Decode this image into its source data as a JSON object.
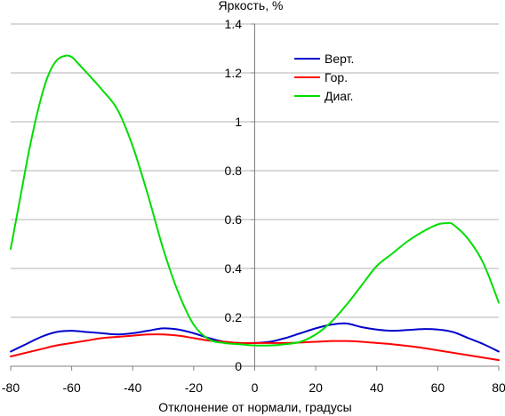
{
  "chart_data": {
    "type": "line",
    "title": "",
    "ylabel": "Яркость, %",
    "xlabel": "Отклонение от нормали, градусы",
    "xlim": [
      -80,
      80
    ],
    "ylim": [
      0,
      1.4
    ],
    "xticks": [
      -80,
      -60,
      -40,
      -20,
      0,
      20,
      40,
      60,
      80
    ],
    "yticks": [
      0,
      0.2,
      0.4,
      0.6,
      0.8,
      1,
      1.2,
      1.4
    ],
    "xtick_labels": [
      "-80",
      "-60",
      "-40",
      "-20",
      "0",
      "20",
      "40",
      "60",
      "80"
    ],
    "ytick_labels": [
      "0",
      "0.2",
      "0.4",
      "0.6",
      "0.8",
      "1",
      "1.2",
      "1.4"
    ],
    "grid": "horizontal",
    "legend_position": "top-right",
    "series": [
      {
        "name": "Верт.",
        "color": "#0000cc",
        "x": [
          -80,
          -75,
          -70,
          -65,
          -60,
          -55,
          -50,
          -45,
          -40,
          -35,
          -30,
          -25,
          -20,
          -15,
          -10,
          -5,
          0,
          5,
          10,
          15,
          20,
          25,
          30,
          35,
          40,
          45,
          50,
          55,
          60,
          65,
          70,
          75,
          80
        ],
        "y": [
          0.06,
          0.09,
          0.12,
          0.14,
          0.145,
          0.14,
          0.135,
          0.13,
          0.135,
          0.145,
          0.155,
          0.15,
          0.135,
          0.115,
          0.1,
          0.095,
          0.095,
          0.1,
          0.115,
          0.135,
          0.155,
          0.17,
          0.175,
          0.16,
          0.15,
          0.145,
          0.148,
          0.152,
          0.15,
          0.14,
          0.115,
          0.09,
          0.06
        ]
      },
      {
        "name": "Гор.",
        "color": "#ff0000",
        "x": [
          -80,
          -75,
          -70,
          -65,
          -60,
          -55,
          -50,
          -45,
          -40,
          -35,
          -30,
          -25,
          -20,
          -15,
          -10,
          -5,
          0,
          5,
          10,
          15,
          20,
          25,
          30,
          35,
          40,
          45,
          50,
          55,
          60,
          65,
          70,
          75,
          80
        ],
        "y": [
          0.04,
          0.055,
          0.07,
          0.085,
          0.095,
          0.105,
          0.115,
          0.12,
          0.125,
          0.13,
          0.13,
          0.125,
          0.115,
          0.105,
          0.1,
          0.095,
          0.095,
          0.095,
          0.095,
          0.097,
          0.1,
          0.103,
          0.103,
          0.1,
          0.095,
          0.09,
          0.083,
          0.075,
          0.065,
          0.055,
          0.045,
          0.035,
          0.025
        ]
      },
      {
        "name": "Диаг.",
        "color": "#00dd00",
        "x": [
          -80,
          -77,
          -74,
          -71,
          -68,
          -65,
          -62,
          -60,
          -58,
          -55,
          -50,
          -45,
          -40,
          -35,
          -30,
          -25,
          -20,
          -15,
          -10,
          -5,
          0,
          5,
          10,
          15,
          20,
          25,
          30,
          35,
          40,
          45,
          50,
          55,
          60,
          63,
          65,
          70,
          75,
          80
        ],
        "y": [
          0.48,
          0.68,
          0.88,
          1.05,
          1.18,
          1.25,
          1.27,
          1.265,
          1.24,
          1.2,
          1.13,
          1.05,
          0.9,
          0.7,
          0.48,
          0.3,
          0.17,
          0.11,
          0.095,
          0.09,
          0.085,
          0.085,
          0.09,
          0.1,
          0.13,
          0.18,
          0.25,
          0.33,
          0.41,
          0.46,
          0.51,
          0.55,
          0.58,
          0.585,
          0.58,
          0.52,
          0.42,
          0.26
        ]
      }
    ]
  }
}
